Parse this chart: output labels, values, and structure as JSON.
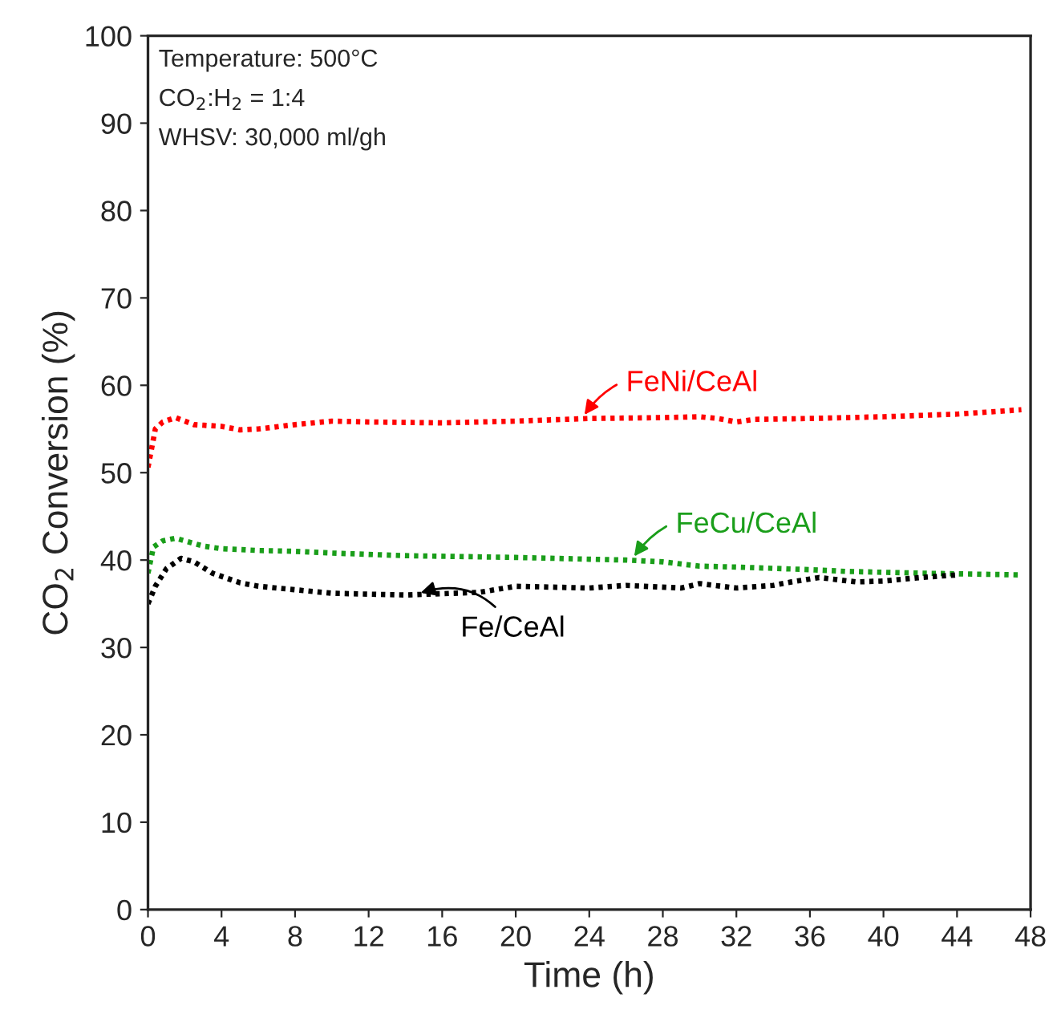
{
  "chart_data": {
    "type": "line",
    "xlabel": "Time (h)",
    "ylabel": "CO$_{2}$ Conversion (%)",
    "xlim": [
      0,
      48
    ],
    "ylim": [
      0,
      100
    ],
    "xticks": [
      0,
      4,
      8,
      12,
      16,
      20,
      24,
      28,
      32,
      36,
      40,
      44,
      48
    ],
    "yticks": [
      0,
      10,
      20,
      30,
      40,
      50,
      60,
      70,
      80,
      90,
      100
    ],
    "grid": false,
    "legend": false,
    "line_style": "dotted",
    "marker": "none",
    "series": [
      {
        "color": "#ff0000",
        "x": [
          0,
          0.4,
          0.8,
          1.5,
          2.5,
          4,
          5,
          6,
          8,
          10,
          12,
          16,
          20,
          24,
          28,
          30,
          31,
          32,
          33,
          36,
          40,
          44,
          47.5
        ],
        "values": [
          50.6,
          55,
          55.8,
          56.3,
          55.5,
          55.3,
          54.9,
          55,
          55.5,
          55.9,
          55.8,
          55.7,
          55.9,
          56.2,
          56.3,
          56.4,
          56.2,
          55.8,
          56.1,
          56.2,
          56.4,
          56.7,
          57.2
        ]
      },
      {
        "color": "#1a9e1a",
        "x": [
          0,
          0.3,
          0.8,
          1.5,
          3,
          4,
          6,
          8,
          10,
          14,
          20,
          24,
          26,
          28,
          30,
          32,
          36,
          38,
          42,
          47.5
        ],
        "values": [
          38.5,
          41.5,
          42.2,
          42.5,
          41.6,
          41.3,
          41.1,
          41,
          40.8,
          40.5,
          40.3,
          40.1,
          40,
          39.8,
          39.3,
          39.2,
          38.9,
          38.7,
          38.5,
          38.3
        ]
      },
      {
        "color": "#000000",
        "x": [
          0,
          0.4,
          1,
          1.8,
          2.5,
          3.5,
          5,
          6,
          8,
          10,
          14,
          18,
          20,
          22,
          24,
          26,
          27,
          29,
          30,
          32,
          34,
          35,
          36.5,
          38.5,
          40,
          42,
          44
        ],
        "values": [
          35,
          37,
          39,
          40.2,
          39.8,
          38.5,
          37.4,
          37,
          36.6,
          36.2,
          36,
          36.3,
          37,
          36.9,
          36.8,
          37.1,
          37,
          36.8,
          37.3,
          36.8,
          37.1,
          37.5,
          38,
          37.5,
          37.6,
          38,
          38.3
        ]
      }
    ],
    "annotations": [
      {
        "text": "FeNi/CeAl",
        "x": 23.6,
        "y": 56.2
      },
      {
        "text": "FeCu/CeAl",
        "x": 26.3,
        "y": 40
      },
      {
        "text": "Fe/CeAl",
        "x": 14.6,
        "y": 36.1
      },
      "Temperature: 500°C",
      "CO$_{2}$:H$_{2}$ = 1:4",
      "WHSV: 30,000 ml/gh"
    ]
  }
}
